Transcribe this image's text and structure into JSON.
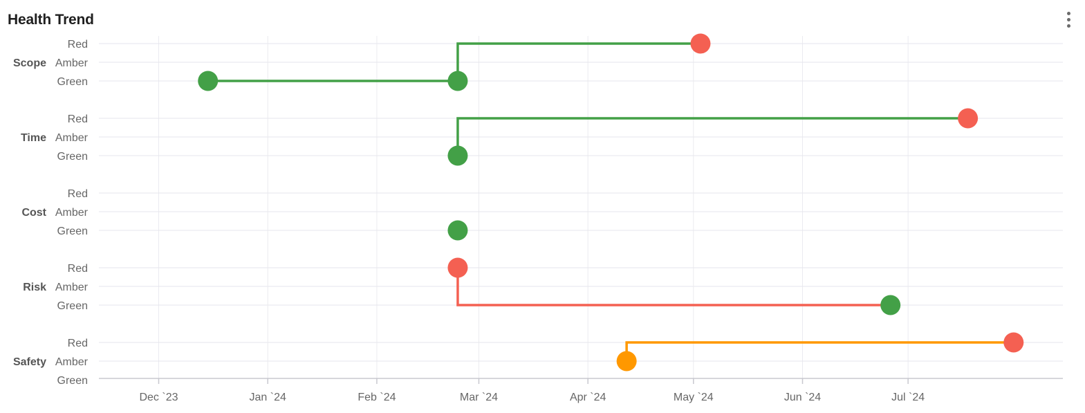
{
  "header": {
    "title": "Health Trend",
    "menu_icon": "vertical-dots-icon"
  },
  "chart_data": {
    "type": "line",
    "title": "Health Trend",
    "xlabel": "",
    "ylabel": "",
    "x_ticks": [
      "Dec `23",
      "Jan `24",
      "Feb `24",
      "Mar `24",
      "Apr `24",
      "May `24",
      "Jun `24",
      "Jul `24"
    ],
    "xlim": [
      "2023-11-14",
      "2024-08-14"
    ],
    "levels": [
      "Red",
      "Amber",
      "Green"
    ],
    "categories": [
      "Scope",
      "Time",
      "Cost",
      "Risk",
      "Safety"
    ],
    "grid": true,
    "colors": {
      "Green": "#43a047",
      "Amber": "#ff9800",
      "Red": "#f46052"
    },
    "series": [
      {
        "name": "Scope",
        "points": [
          {
            "x": "2023-12-15",
            "y": "Green"
          },
          {
            "x": "2024-02-24",
            "y": "Green"
          },
          {
            "x": "2024-05-03",
            "y": "Red"
          }
        ]
      },
      {
        "name": "Time",
        "points": [
          {
            "x": "2024-02-24",
            "y": "Green"
          },
          {
            "x": "2024-07-18",
            "y": "Red"
          }
        ]
      },
      {
        "name": "Cost",
        "points": [
          {
            "x": "2024-02-24",
            "y": "Green"
          }
        ]
      },
      {
        "name": "Risk",
        "points": [
          {
            "x": "2024-02-24",
            "y": "Red"
          },
          {
            "x": "2024-06-26",
            "y": "Green"
          }
        ]
      },
      {
        "name": "Safety",
        "points": [
          {
            "x": "2024-04-12",
            "y": "Amber"
          },
          {
            "x": "2024-07-31",
            "y": "Red"
          }
        ]
      }
    ]
  }
}
